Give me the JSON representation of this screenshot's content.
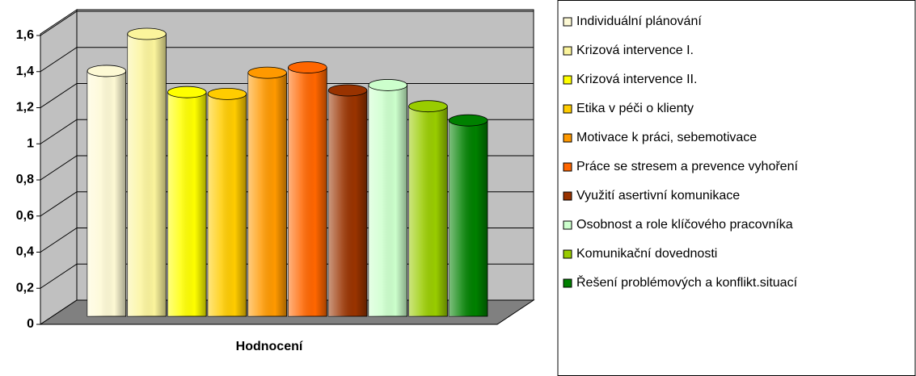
{
  "chart_data": {
    "type": "bar",
    "categories": [
      "Hodnocení"
    ],
    "series": [
      {
        "name": "Individuální plánování",
        "color": "#fdf9d4",
        "values": [
          1.39
        ]
      },
      {
        "name": "Krizová intervence I.",
        "color": "#fbf49c",
        "values": [
          1.6
        ]
      },
      {
        "name": "Krizová intervence II.",
        "color": "#ffff00",
        "values": [
          1.27
        ]
      },
      {
        "name": "Etika v péči o klienty",
        "color": "#ffcc00",
        "values": [
          1.26
        ]
      },
      {
        "name": "Motivace k práci, sebemotivace",
        "color": "#ff9900",
        "values": [
          1.38
        ]
      },
      {
        "name": "Práce se stresem a prevence vyhoření",
        "color": "#ff6600",
        "values": [
          1.41
        ]
      },
      {
        "name": "Využití asertivní komunikace",
        "color": "#993300",
        "values": [
          1.28
        ]
      },
      {
        "name": "Osobnost a role klíčového pracovníka",
        "color": "#ccffcc",
        "values": [
          1.31
        ]
      },
      {
        "name": "Komunikační dovednosti",
        "color": "#99cc00",
        "values": [
          1.19
        ]
      },
      {
        "name": "Řešení problémových a konflikt.situací",
        "color": "#008000",
        "values": [
          1.11
        ]
      }
    ],
    "ylim": [
      0,
      1.6
    ],
    "yticks": [
      0,
      {
        "value": 0.2,
        "label": "0,2"
      },
      {
        "value": 0.4,
        "label": "0,4"
      },
      {
        "value": 0.6,
        "label": "0,6"
      },
      {
        "value": 0.8,
        "label": "0,8"
      },
      1,
      {
        "value": 1.2,
        "label": "1,2"
      },
      {
        "value": 1.4,
        "label": "1,4"
      },
      {
        "value": 1.6,
        "label": "1,6"
      }
    ],
    "grid": true,
    "legend": "right"
  }
}
